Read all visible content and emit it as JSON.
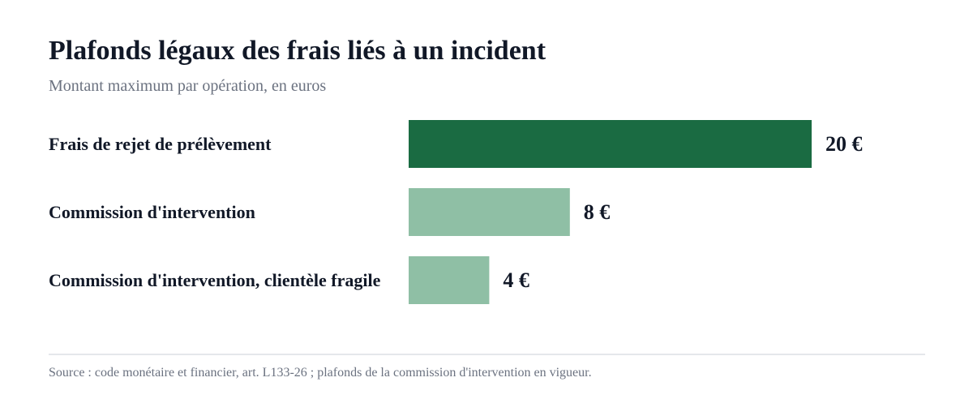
{
  "header": {
    "title": "Plafonds légaux des frais liés à un incident",
    "subtitle": "Montant maximum par opération, en euros"
  },
  "chart_data": {
    "type": "bar",
    "orientation": "horizontal",
    "title": "Plafonds légaux des frais liés à un incident",
    "subtitle": "Montant maximum par opération, en euros",
    "categories": [
      "Frais de rejet de prélèvement",
      "Commission d'intervention",
      "Commission d'intervention, clientèle fragile"
    ],
    "values": [
      20,
      8,
      4
    ],
    "value_labels": [
      "20 €",
      "8 €",
      "4 €"
    ],
    "unit": "€",
    "xlim": [
      0,
      20
    ],
    "grid": false,
    "legend": "none",
    "colors": {
      "highlight": "#1a6b42",
      "default": "#8fbfa5",
      "label_text": "#111827"
    },
    "bar_colors": [
      "#1a6b42",
      "#8fbfa5",
      "#8fbfa5"
    ]
  },
  "footer": {
    "source": "Source : code monétaire et financier, art. L133-26 ; plafonds de la commission d'intervention en vigueur."
  }
}
